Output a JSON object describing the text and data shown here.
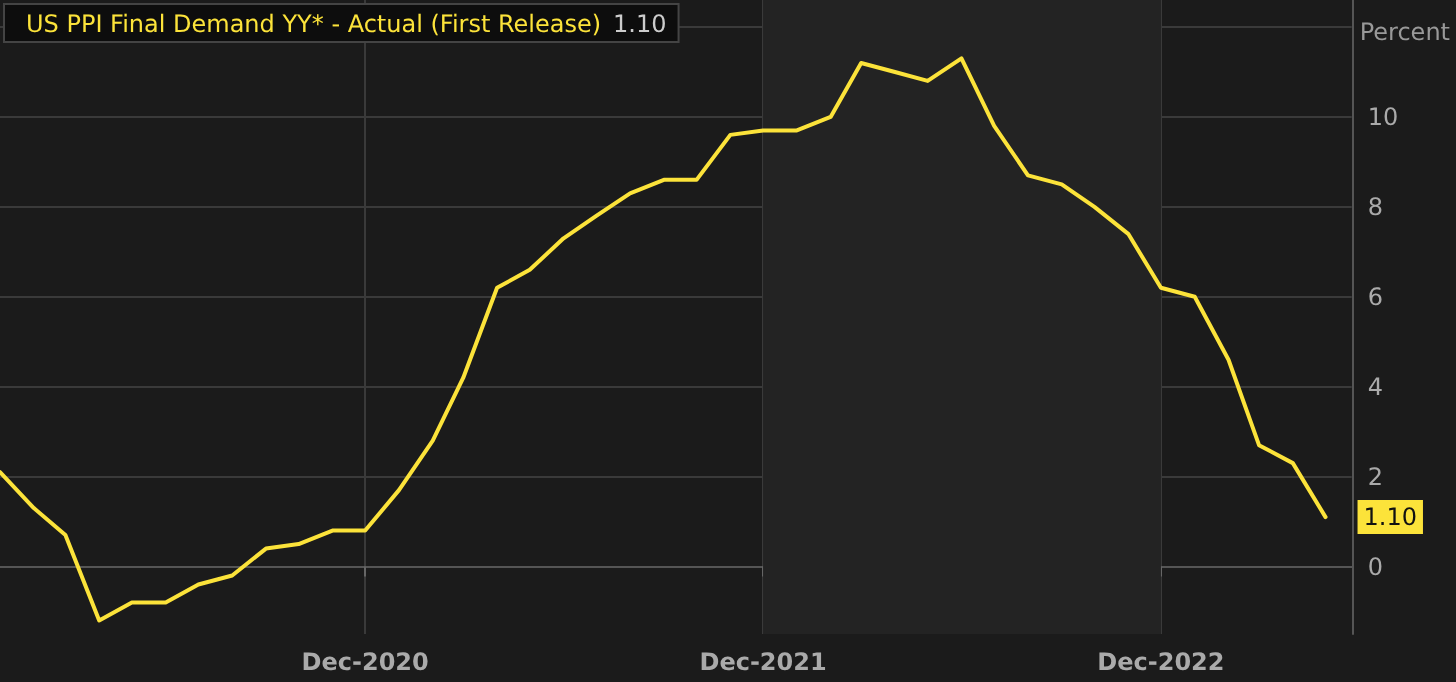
{
  "chart_data": {
    "type": "line",
    "ylabel": "Percent",
    "x": [
      "2020-01",
      "2020-02",
      "2020-03",
      "2020-04",
      "2020-05",
      "2020-06",
      "2020-07",
      "2020-08",
      "2020-09",
      "2020-10",
      "2020-11",
      "2020-12",
      "2021-01",
      "2021-02",
      "2021-03",
      "2021-04",
      "2021-05",
      "2021-06",
      "2021-07",
      "2021-08",
      "2021-09",
      "2021-10",
      "2021-11",
      "2021-12",
      "2022-01",
      "2022-02",
      "2022-03",
      "2022-04",
      "2022-05",
      "2022-06",
      "2022-07",
      "2022-08",
      "2022-09",
      "2022-10",
      "2022-11",
      "2022-12",
      "2023-01",
      "2023-02",
      "2023-03",
      "2023-04",
      "2023-05"
    ],
    "series": [
      {
        "name": "US PPI Final Demand YY* - Actual (First Release)",
        "color": "#fce33a",
        "values": [
          2.1,
          1.3,
          0.7,
          -1.2,
          -0.8,
          -0.8,
          -0.4,
          -0.2,
          0.4,
          0.5,
          0.8,
          0.8,
          1.7,
          2.8,
          4.2,
          6.2,
          6.6,
          7.3,
          7.8,
          8.3,
          8.6,
          8.6,
          9.6,
          9.7,
          9.7,
          10.0,
          11.2,
          11.0,
          10.8,
          11.3,
          9.8,
          8.7,
          8.5,
          8.0,
          7.4,
          6.2,
          6.0,
          4.6,
          2.7,
          2.3,
          1.1
        ],
        "value_labels": [
          null,
          null,
          null,
          null,
          null,
          null,
          null,
          null,
          null,
          null,
          null,
          null,
          null,
          null,
          null,
          null,
          null,
          null,
          null,
          null,
          null,
          null,
          null,
          null,
          null,
          null,
          null,
          null,
          null,
          null,
          null,
          null,
          null,
          null,
          null,
          null,
          null,
          null,
          null,
          null,
          "1.10"
        ]
      }
    ],
    "xlim": [
      "2020-01-01",
      "2023-05-25"
    ],
    "xticks": [
      {
        "value": "2020-12",
        "label": "Dec-2020"
      },
      {
        "value": "2021-12",
        "label": "Dec-2021"
      },
      {
        "value": "2022-12",
        "label": "Dec-2022"
      }
    ],
    "ylim": [
      -1.5,
      12.6
    ],
    "yticks": [
      0,
      2,
      4,
      6,
      8,
      10,
      {
        "value": 12,
        "label": null
      }
    ],
    "bands": [
      {
        "axis": "x",
        "from": "2021-12",
        "to": "2022-12",
        "color": "#232323"
      }
    ],
    "grid": true,
    "legend": "top left",
    "marker": "none",
    "line_style": "solid"
  }
}
